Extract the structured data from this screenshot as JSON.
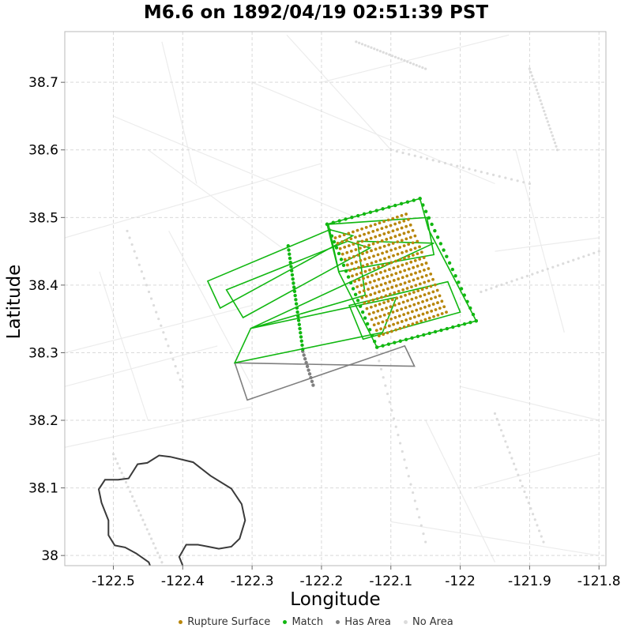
{
  "title": "M6.6 on 1892/04/19 02:51:39 PST",
  "chart_data": {
    "type": "scatter",
    "xlabel": "Longitude",
    "ylabel": "Latitude",
    "xlim": [
      -122.57,
      -121.79
    ],
    "ylim": [
      37.985,
      38.775
    ],
    "x_ticks": [
      -122.5,
      -122.4,
      -122.3,
      -122.2,
      -122.1,
      -122.0,
      -121.9,
      -121.8
    ],
    "x_tick_labels": [
      "-122.5",
      "-122.4",
      "-122.3",
      "-122.2",
      "-122.1",
      "-122",
      "-121.9",
      "-121.8"
    ],
    "y_ticks": [
      38.0,
      38.1,
      38.2,
      38.3,
      38.4,
      38.5,
      38.6,
      38.7
    ],
    "y_tick_labels": [
      "38",
      "38.1",
      "38.2",
      "38.3",
      "38.4",
      "38.5",
      "38.6",
      "38.7"
    ],
    "grid": true,
    "legend_position": "bottom",
    "colors": {
      "rupture": "#b8860b",
      "match": "#11b711",
      "has_area": "#7f7f7f",
      "no_area": "#dcdcdc",
      "coastline": "#3a3a3a",
      "grid": "#d9d9d9"
    },
    "series": [
      {
        "name": "Rupture Surface",
        "color": "#b8860b"
      },
      {
        "name": "Match",
        "color": "#11b711"
      },
      {
        "name": "Has Area",
        "color": "#7f7f7f"
      },
      {
        "name": "No Area",
        "color": "#dcdcdc"
      }
    ],
    "rupture_surface": {
      "corners": [
        [
          -122.18,
          38.47
        ],
        [
          -122.078,
          38.505
        ],
        [
          -122.02,
          38.36
        ],
        [
          -122.117,
          38.325
        ]
      ],
      "rows": 19,
      "cols": 17
    },
    "match_polygons": [
      [
        [
          -122.364,
          38.406
        ],
        [
          -122.188,
          38.482
        ],
        [
          -122.155,
          38.473
        ],
        [
          -122.346,
          38.366
        ]
      ],
      [
        [
          -122.337,
          38.393
        ],
        [
          -122.162,
          38.465
        ],
        [
          -122.13,
          38.455
        ],
        [
          -122.313,
          38.352
        ]
      ],
      [
        [
          -122.302,
          38.336
        ],
        [
          -122.137,
          38.385
        ],
        [
          -122.148,
          38.465
        ],
        [
          -122.038,
          38.462
        ]
      ],
      [
        [
          -122.302,
          38.336
        ],
        [
          -122.325,
          38.285
        ],
        [
          -122.112,
          38.33
        ],
        [
          -122.092,
          38.382
        ]
      ],
      [
        [
          -122.192,
          38.49
        ],
        [
          -122.058,
          38.528
        ],
        [
          -122.046,
          38.483
        ],
        [
          -121.977,
          38.347
        ],
        [
          -122.12,
          38.308
        ],
        [
          -122.175,
          38.419
        ]
      ],
      [
        [
          -122.175,
          38.42
        ],
        [
          -122.038,
          38.445
        ],
        [
          -122.048,
          38.5
        ],
        [
          -122.19,
          38.49
        ]
      ],
      [
        [
          -122.16,
          38.37
        ],
        [
          -122.018,
          38.405
        ],
        [
          -122.0,
          38.36
        ],
        [
          -122.14,
          38.32
        ]
      ]
    ],
    "has_area_polygon": [
      [
        -122.325,
        38.285
      ],
      [
        -122.066,
        38.28
      ],
      [
        -122.08,
        38.31
      ],
      [
        -122.307,
        38.23
      ]
    ],
    "match_traces": [
      {
        "start": [
          -122.248,
          38.458
        ],
        "end": [
          -122.227,
          38.305
        ],
        "n": 26
      },
      {
        "start": [
          -122.192,
          38.49
        ],
        "end": [
          -122.12,
          38.308
        ],
        "n": 22
      },
      {
        "start": [
          -122.192,
          38.49
        ],
        "end": [
          -122.058,
          38.528
        ],
        "n": 16
      },
      {
        "start": [
          -122.058,
          38.528
        ],
        "end": [
          -121.977,
          38.347
        ],
        "n": 20
      },
      {
        "start": [
          -121.977,
          38.347
        ],
        "end": [
          -122.12,
          38.308
        ],
        "n": 18
      }
    ],
    "has_area_traces": [
      {
        "start": [
          -122.227,
          38.302
        ],
        "end": [
          -122.212,
          38.252
        ],
        "n": 10
      }
    ],
    "coastline": [
      [
        -122.447,
        37.985
      ],
      [
        -122.449,
        37.99
      ],
      [
        -122.467,
        38.003
      ],
      [
        -122.483,
        38.012
      ],
      [
        -122.498,
        38.015
      ],
      [
        -122.507,
        38.03
      ],
      [
        -122.507,
        38.052
      ],
      [
        -122.517,
        38.078
      ],
      [
        -122.521,
        38.098
      ],
      [
        -122.512,
        38.112
      ],
      [
        -122.493,
        38.112
      ],
      [
        -122.478,
        38.114
      ],
      [
        -122.465,
        38.135
      ],
      [
        -122.451,
        38.137
      ],
      [
        -122.434,
        38.148
      ],
      [
        -122.418,
        38.146
      ],
      [
        -122.385,
        38.138
      ],
      [
        -122.36,
        38.118
      ],
      [
        -122.33,
        38.099
      ],
      [
        -122.315,
        38.076
      ],
      [
        -122.31,
        38.052
      ],
      [
        -122.318,
        38.025
      ],
      [
        -122.33,
        38.013
      ],
      [
        -122.348,
        38.01
      ],
      [
        -122.363,
        38.013
      ],
      [
        -122.378,
        38.016
      ],
      [
        -122.395,
        38.016
      ],
      [
        -122.405,
        37.998
      ],
      [
        -122.4,
        37.985
      ]
    ]
  },
  "legend": {
    "rupture": "Rupture Surface",
    "match": "Match",
    "has_area": "Has Area",
    "no_area": "No Area"
  }
}
